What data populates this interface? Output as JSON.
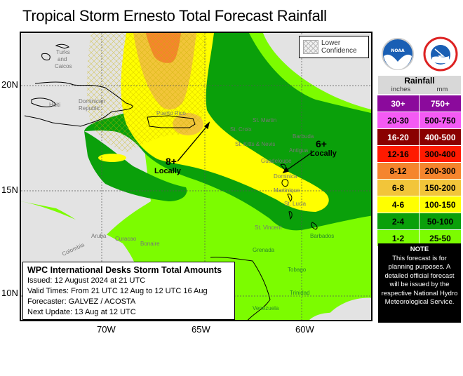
{
  "title": "Tropical Storm Ernesto Total Forecast Rainfall",
  "map": {
    "latitude_labels": [
      "20N",
      "15N",
      "10N"
    ],
    "longitude_labels": [
      "70W",
      "65W",
      "60W"
    ],
    "place_labels": {
      "turks_caicos": "Turks and Caicos",
      "haiti": "Haiti",
      "dominican_republic": "Dominican Republic",
      "puerto_rico": "Puerto Rico",
      "st_martin": "St. Martin",
      "st_croix": "St. Croix",
      "barbuda": "Barbuda",
      "st_kitts_nevis": "St. Kitts & Nevis",
      "antigua": "Antigua",
      "guadeloupe": "Guadeloupe",
      "dominica": "Dominica",
      "martinique": "Martinique",
      "st_lucia": "St. Lucia",
      "st_vincent": "St. Vincent",
      "barbados": "Barbados",
      "grenada": "Grenada",
      "tobago": "Tobago",
      "trinidad": "Trinidad",
      "venezuela": "Venezuela",
      "aruba": "Aruba",
      "curacao": "Curacao",
      "bonaire": "Bonaire",
      "colombia": "Colombia"
    },
    "annotations": [
      {
        "value": "8+",
        "label": "Locally"
      },
      {
        "value": "6+",
        "label": "Locally"
      }
    ],
    "confidence_legend": "Lower Confidence"
  },
  "info_box": {
    "title": "WPC International Desks Storm Total Amounts",
    "issued": "Issued:  12 August 2024 at 21 UTC",
    "valid": "Valid Times:  From 21 UTC 12 Aug  to  12 UTC 16 Aug",
    "forecaster": "Forecaster:  GALVEZ / ACOSTA",
    "next_update": "Next Update: 13 Aug at 12 UTC"
  },
  "logos": {
    "noaa": "NOAA",
    "nws": "National Weather Service"
  },
  "legend": {
    "title": "Rainfall",
    "unit_inches": "inches",
    "unit_mm": "mm",
    "rows": [
      {
        "inches": "30+",
        "mm": "750+",
        "color": "#8b0a9c",
        "text": "#ffffff"
      },
      {
        "inches": "20-30",
        "mm": "500-750",
        "color": "#f45af4",
        "text": "#000000"
      },
      {
        "inches": "16-20",
        "mm": "400-500",
        "color": "#8a0000",
        "text": "#ffffff"
      },
      {
        "inches": "12-16",
        "mm": "300-400",
        "color": "#ff1a00",
        "text": "#000000"
      },
      {
        "inches": "8-12",
        "mm": "200-300",
        "color": "#f5852d",
        "text": "#000000"
      },
      {
        "inches": "6-8",
        "mm": "150-200",
        "color": "#f2c53a",
        "text": "#000000"
      },
      {
        "inches": "4-6",
        "mm": "100-150",
        "color": "#ffff00",
        "text": "#000000"
      },
      {
        "inches": "2-4",
        "mm": "50-100",
        "color": "#0aa00a",
        "text": "#000000"
      },
      {
        "inches": "1-2",
        "mm": "25-50",
        "color": "#7cfc00",
        "text": "#000000"
      }
    ]
  },
  "note": {
    "title": "NOTE",
    "text": "This forecast is for planning purposes. A detailed official forecast will be issued by the respective National Hydro Meteorological Service."
  }
}
